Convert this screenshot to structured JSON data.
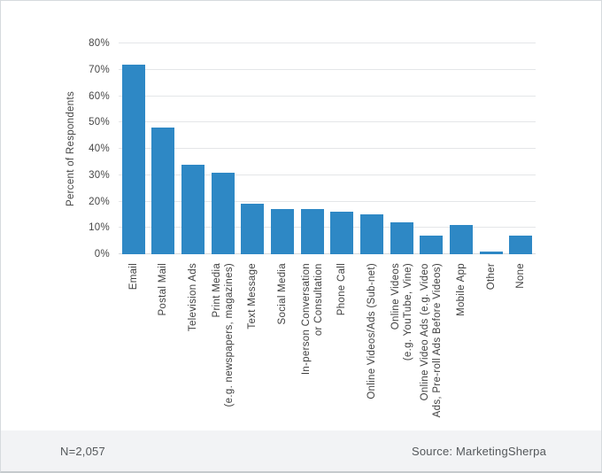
{
  "chart_data": {
    "type": "bar",
    "title": "",
    "xlabel": "",
    "ylabel": "Percent of Respondents",
    "ylim": [
      0,
      80
    ],
    "ytick_step": 10,
    "ytick_suffix": "%",
    "grid": true,
    "legend": "none",
    "categories": [
      "Email",
      "Postal Mail",
      "Television Ads",
      "Print Media\n(e.g. newspapers, magazines)",
      "Text Message",
      "Social Media",
      "In-person Conversation\nor Consultation",
      "Phone Call",
      "Online Videos/Ads (Sub-net)",
      "Online Videos\n(e.g. YouTube, Vine)",
      "Online Video Ads (e.g. Video\nAds, Pre-roll Ads Before Videos)",
      "Mobile App",
      "Other",
      "None"
    ],
    "values": [
      72,
      48,
      34,
      31,
      19,
      17,
      17,
      16,
      15,
      12,
      7,
      11,
      1,
      7
    ]
  },
  "footer": {
    "sample_size": "N=2,057",
    "source": "Source: MarketingSherpa"
  },
  "colors": {
    "bar": "#2e88c5",
    "grid": "#e4e6e8",
    "axis_line": "#d7dadc",
    "footer_bg": "#f2f3f5",
    "background": "#ffffff"
  }
}
